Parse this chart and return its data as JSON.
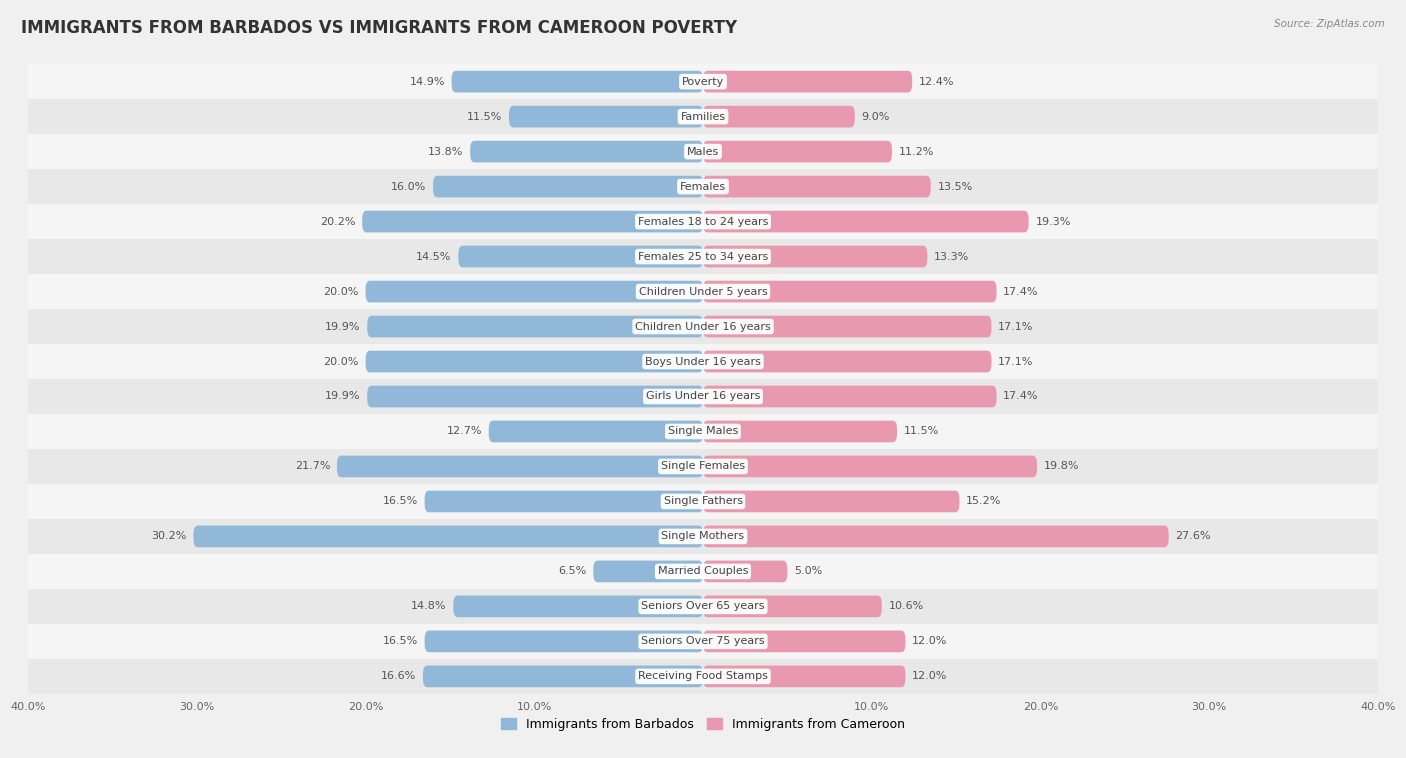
{
  "title": "IMMIGRANTS FROM BARBADOS VS IMMIGRANTS FROM CAMEROON POVERTY",
  "source": "Source: ZipAtlas.com",
  "categories": [
    "Poverty",
    "Families",
    "Males",
    "Females",
    "Females 18 to 24 years",
    "Females 25 to 34 years",
    "Children Under 5 years",
    "Children Under 16 years",
    "Boys Under 16 years",
    "Girls Under 16 years",
    "Single Males",
    "Single Females",
    "Single Fathers",
    "Single Mothers",
    "Married Couples",
    "Seniors Over 65 years",
    "Seniors Over 75 years",
    "Receiving Food Stamps"
  ],
  "barbados_values": [
    14.9,
    11.5,
    13.8,
    16.0,
    20.2,
    14.5,
    20.0,
    19.9,
    20.0,
    19.9,
    12.7,
    21.7,
    16.5,
    30.2,
    6.5,
    14.8,
    16.5,
    16.6
  ],
  "cameroon_values": [
    12.4,
    9.0,
    11.2,
    13.5,
    19.3,
    13.3,
    17.4,
    17.1,
    17.1,
    17.4,
    11.5,
    19.8,
    15.2,
    27.6,
    5.0,
    10.6,
    12.0,
    12.0
  ],
  "barbados_color": "#91b8d8",
  "cameroon_color": "#e899b0",
  "barbados_label": "Immigrants from Barbados",
  "cameroon_label": "Immigrants from Cameroon",
  "xlim": 40.0,
  "row_bg_light": "#f5f5f5",
  "row_bg_dark": "#e8e8e8",
  "background_color": "#f0f0f0",
  "title_fontsize": 12,
  "label_fontsize": 8,
  "value_fontsize": 8,
  "bar_height": 0.62
}
